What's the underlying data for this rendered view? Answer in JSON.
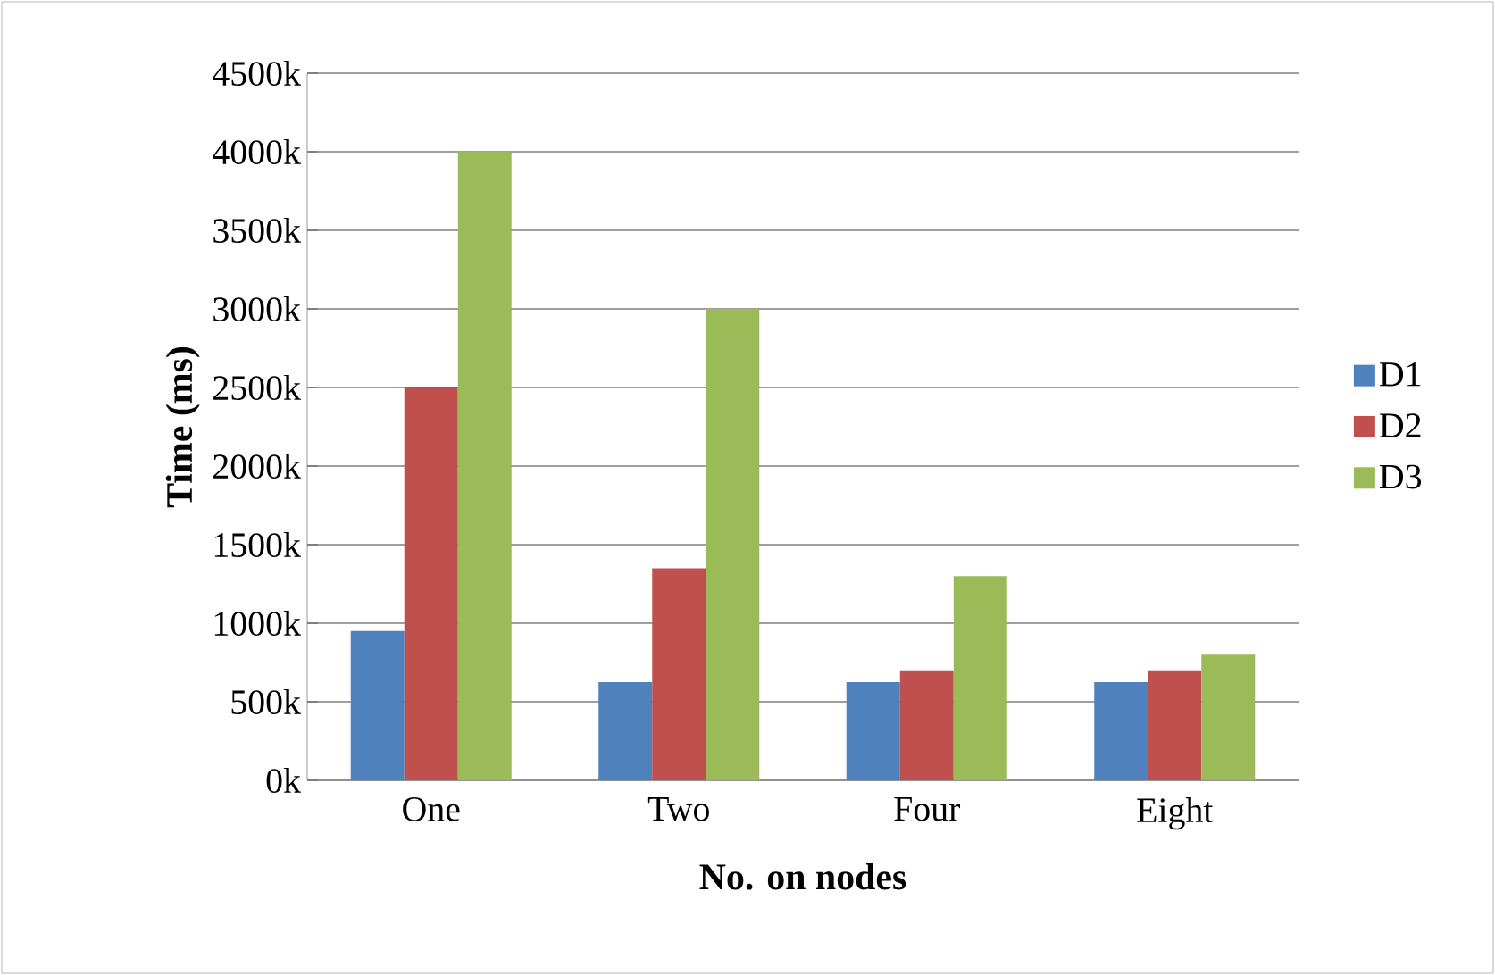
{
  "chart_data": {
    "type": "bar",
    "xlabel": "No. on nodes",
    "ylabel": "Time (ms)",
    "categories": [
      "One",
      "Two",
      "Four",
      "Eight"
    ],
    "series": [
      {
        "name": "D1",
        "color": "#4f81bd",
        "values": [
          950,
          625,
          625,
          625
        ]
      },
      {
        "name": "D2",
        "color": "#c0504d",
        "values": [
          2500,
          1350,
          700,
          700
        ]
      },
      {
        "name": "D3",
        "color": "#9bbb59",
        "values": [
          4000,
          3000,
          1300,
          800
        ]
      }
    ],
    "ylim": [
      0,
      4500
    ],
    "yticks": [
      {
        "value": 0,
        "label": "0k"
      },
      {
        "value": 500,
        "label": "500k"
      },
      {
        "value": 1000,
        "label": "1000k"
      },
      {
        "value": 1500,
        "label": "1500k"
      },
      {
        "value": 2000,
        "label": "2000k"
      },
      {
        "value": 2500,
        "label": "2500k"
      },
      {
        "value": 3000,
        "label": "3000k"
      },
      {
        "value": 3500,
        "label": "3500k"
      },
      {
        "value": 4000,
        "label": "4000k"
      },
      {
        "value": 4500,
        "label": "4500k"
      }
    ],
    "grid": "y",
    "legend": "right"
  }
}
